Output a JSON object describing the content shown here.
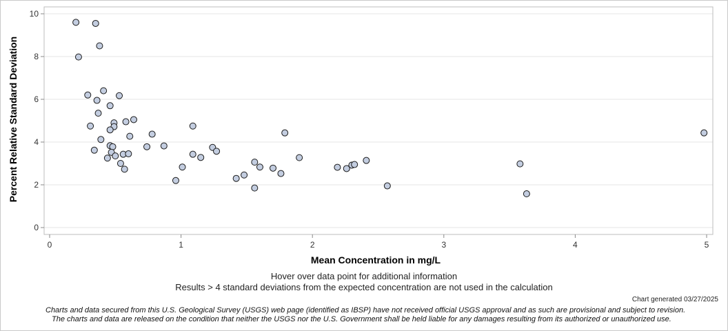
{
  "chart_data": {
    "type": "scatter",
    "title": "",
    "xlabel": "Mean Concentration in mg/L",
    "ylabel": "Percent Relative Standard Deviation",
    "xlim": [
      0,
      5
    ],
    "ylim": [
      0,
      10
    ],
    "xticks": [
      0,
      1,
      2,
      3,
      4,
      5
    ],
    "yticks": [
      0,
      2,
      4,
      6,
      8,
      10
    ],
    "grid": "horizontal",
    "marker_color": "#c3cde0",
    "marker_edge": "#1a1a1a",
    "points": [
      {
        "x": 0.2,
        "y": 9.6
      },
      {
        "x": 0.35,
        "y": 9.55
      },
      {
        "x": 0.22,
        "y": 7.98
      },
      {
        "x": 0.38,
        "y": 8.5
      },
      {
        "x": 0.29,
        "y": 6.2
      },
      {
        "x": 0.41,
        "y": 6.4
      },
      {
        "x": 0.36,
        "y": 5.95
      },
      {
        "x": 0.53,
        "y": 6.17
      },
      {
        "x": 0.46,
        "y": 5.7
      },
      {
        "x": 0.37,
        "y": 5.35
      },
      {
        "x": 0.31,
        "y": 4.75
      },
      {
        "x": 0.49,
        "y": 4.9
      },
      {
        "x": 0.49,
        "y": 4.72
      },
      {
        "x": 0.46,
        "y": 4.57
      },
      {
        "x": 0.58,
        "y": 4.95
      },
      {
        "x": 0.64,
        "y": 5.05
      },
      {
        "x": 0.39,
        "y": 4.12
      },
      {
        "x": 0.61,
        "y": 4.27
      },
      {
        "x": 0.46,
        "y": 3.83
      },
      {
        "x": 0.48,
        "y": 3.78
      },
      {
        "x": 0.34,
        "y": 3.62
      },
      {
        "x": 0.47,
        "y": 3.52
      },
      {
        "x": 0.5,
        "y": 3.35
      },
      {
        "x": 0.44,
        "y": 3.25
      },
      {
        "x": 0.56,
        "y": 3.43
      },
      {
        "x": 0.6,
        "y": 3.45
      },
      {
        "x": 0.54,
        "y": 3.0
      },
      {
        "x": 0.57,
        "y": 2.73
      },
      {
        "x": 0.74,
        "y": 3.78
      },
      {
        "x": 0.78,
        "y": 4.37
      },
      {
        "x": 0.87,
        "y": 3.82
      },
      {
        "x": 0.96,
        "y": 2.2
      },
      {
        "x": 1.01,
        "y": 2.83
      },
      {
        "x": 1.09,
        "y": 4.75
      },
      {
        "x": 1.09,
        "y": 3.43
      },
      {
        "x": 1.15,
        "y": 3.28
      },
      {
        "x": 1.24,
        "y": 3.75
      },
      {
        "x": 1.27,
        "y": 3.57
      },
      {
        "x": 1.42,
        "y": 2.3
      },
      {
        "x": 1.48,
        "y": 2.46
      },
      {
        "x": 1.56,
        "y": 3.06
      },
      {
        "x": 1.56,
        "y": 1.85
      },
      {
        "x": 1.6,
        "y": 2.83
      },
      {
        "x": 1.7,
        "y": 2.78
      },
      {
        "x": 1.76,
        "y": 2.53
      },
      {
        "x": 1.79,
        "y": 4.43
      },
      {
        "x": 1.9,
        "y": 3.27
      },
      {
        "x": 2.19,
        "y": 2.82
      },
      {
        "x": 2.26,
        "y": 2.76
      },
      {
        "x": 2.3,
        "y": 2.92
      },
      {
        "x": 2.32,
        "y": 2.95
      },
      {
        "x": 2.41,
        "y": 3.14
      },
      {
        "x": 2.57,
        "y": 1.95
      },
      {
        "x": 3.58,
        "y": 2.98
      },
      {
        "x": 3.63,
        "y": 1.58
      },
      {
        "x": 4.98,
        "y": 4.43
      }
    ]
  },
  "notes": {
    "hover": "Hover over data point for additional information",
    "results": "Results > 4 standard deviations from the expected concentration are not used in the calculation"
  },
  "generated": "Chart generated 03/27/2025",
  "disclaimer": {
    "line1": "Charts and data secured from this U.S. Geological Survey (USGS) web page (identified as IBSP) have not received official USGS approval and as such are provisional and subject to revision.",
    "line2": "The charts and data are released on the condition that neither the USGS nor the U.S. Government shall be held liable for any damages resulting from its authorized or unauthorized use."
  }
}
